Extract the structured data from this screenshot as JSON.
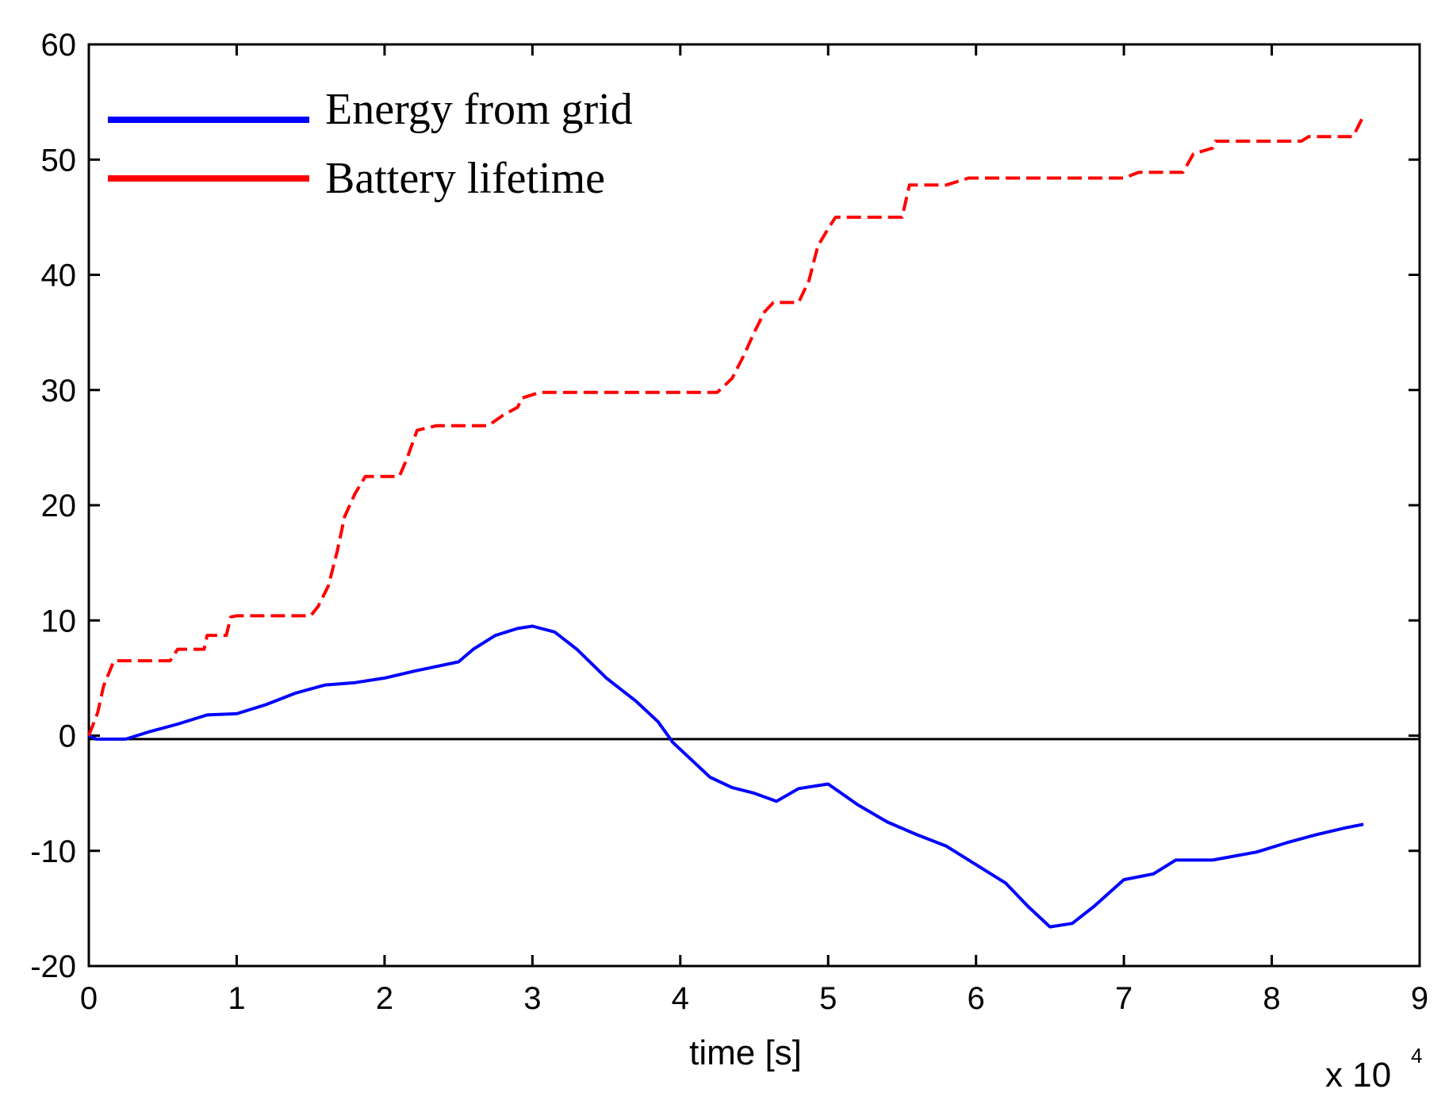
{
  "chart_data": {
    "type": "line",
    "title": "",
    "xlabel": "time [s]",
    "ylabel": "",
    "x_multiplier_label": "x 10",
    "x_multiplier_exponent": "4",
    "xlim": [
      0,
      9
    ],
    "ylim": [
      -20,
      60
    ],
    "xticks": [
      0,
      1,
      2,
      3,
      4,
      5,
      6,
      7,
      8,
      9
    ],
    "yticks": [
      -20,
      -10,
      0,
      10,
      20,
      30,
      40,
      50,
      60
    ],
    "xtick_labels": [
      "0",
      "1",
      "2",
      "3",
      "4",
      "5",
      "6",
      "7",
      "8",
      "9"
    ],
    "ytick_labels": [
      "-20",
      "-10",
      "0",
      "10",
      "20",
      "30",
      "40",
      "50",
      "60"
    ],
    "grid": false,
    "legend_position": "top-left",
    "reference_line": {
      "y": -0.3,
      "color": "#000000"
    },
    "series": [
      {
        "name": "Energy from grid",
        "color": "#0000ff",
        "style": "solid",
        "points": [
          [
            0,
            0
          ],
          [
            0.05,
            -0.3
          ],
          [
            0.25,
            -0.3
          ],
          [
            0.4,
            0.3
          ],
          [
            0.6,
            1.0
          ],
          [
            0.8,
            1.8
          ],
          [
            1.0,
            1.9
          ],
          [
            1.2,
            2.7
          ],
          [
            1.4,
            3.7
          ],
          [
            1.6,
            4.4
          ],
          [
            1.8,
            4.6
          ],
          [
            2.0,
            5.0
          ],
          [
            2.2,
            5.6
          ],
          [
            2.5,
            6.4
          ],
          [
            2.6,
            7.5
          ],
          [
            2.75,
            8.7
          ],
          [
            2.9,
            9.3
          ],
          [
            3.0,
            9.5
          ],
          [
            3.15,
            9.0
          ],
          [
            3.3,
            7.5
          ],
          [
            3.5,
            5.0
          ],
          [
            3.7,
            3.0
          ],
          [
            3.85,
            1.2
          ],
          [
            3.95,
            -0.6
          ],
          [
            4.05,
            -1.8
          ],
          [
            4.2,
            -3.6
          ],
          [
            4.35,
            -4.5
          ],
          [
            4.5,
            -5.0
          ],
          [
            4.65,
            -5.7
          ],
          [
            4.8,
            -4.6
          ],
          [
            5.0,
            -4.2
          ],
          [
            5.2,
            -6.0
          ],
          [
            5.4,
            -7.5
          ],
          [
            5.6,
            -8.6
          ],
          [
            5.8,
            -9.6
          ],
          [
            6.0,
            -11.2
          ],
          [
            6.2,
            -12.8
          ],
          [
            6.35,
            -14.8
          ],
          [
            6.5,
            -16.6
          ],
          [
            6.65,
            -16.3
          ],
          [
            6.8,
            -14.8
          ],
          [
            7.0,
            -12.5
          ],
          [
            7.2,
            -12.0
          ],
          [
            7.35,
            -10.8
          ],
          [
            7.6,
            -10.8
          ],
          [
            7.9,
            -10.1
          ],
          [
            8.1,
            -9.3
          ],
          [
            8.3,
            -8.6
          ],
          [
            8.5,
            -8.0
          ],
          [
            8.62,
            -7.7
          ]
        ]
      },
      {
        "name": "Battery lifetime",
        "color": "#ff0000",
        "style": "dashed",
        "points": [
          [
            0,
            0
          ],
          [
            0.06,
            2.0
          ],
          [
            0.1,
            4.3
          ],
          [
            0.17,
            6.5
          ],
          [
            0.25,
            6.5
          ],
          [
            0.55,
            6.5
          ],
          [
            0.6,
            7.5
          ],
          [
            0.78,
            7.5
          ],
          [
            0.8,
            8.7
          ],
          [
            0.93,
            8.7
          ],
          [
            0.96,
            10.3
          ],
          [
            1.0,
            10.4
          ],
          [
            1.5,
            10.4
          ],
          [
            1.55,
            11.2
          ],
          [
            1.62,
            13.0
          ],
          [
            1.68,
            16.0
          ],
          [
            1.73,
            19.0
          ],
          [
            1.8,
            21.0
          ],
          [
            1.87,
            22.5
          ],
          [
            2.1,
            22.5
          ],
          [
            2.15,
            24.0
          ],
          [
            2.22,
            26.5
          ],
          [
            2.35,
            26.9
          ],
          [
            2.7,
            26.9
          ],
          [
            2.8,
            27.8
          ],
          [
            2.9,
            28.5
          ],
          [
            2.93,
            29.3
          ],
          [
            3.05,
            29.8
          ],
          [
            4.25,
            29.8
          ],
          [
            4.35,
            31.0
          ],
          [
            4.43,
            33.0
          ],
          [
            4.5,
            35.0
          ],
          [
            4.57,
            36.8
          ],
          [
            4.63,
            37.6
          ],
          [
            4.8,
            37.6
          ],
          [
            4.87,
            39.5
          ],
          [
            4.93,
            42.5
          ],
          [
            5.0,
            44.0
          ],
          [
            5.05,
            45.0
          ],
          [
            5.5,
            45.0
          ],
          [
            5.55,
            47.8
          ],
          [
            5.8,
            47.8
          ],
          [
            5.95,
            48.4
          ],
          [
            6.7,
            48.4
          ],
          [
            7.0,
            48.4
          ],
          [
            7.1,
            48.9
          ],
          [
            7.4,
            48.9
          ],
          [
            7.47,
            50.5
          ],
          [
            7.6,
            51.0
          ],
          [
            7.62,
            51.6
          ],
          [
            8.2,
            51.6
          ],
          [
            8.25,
            52.0
          ],
          [
            8.55,
            52.0
          ],
          [
            8.62,
            53.8
          ]
        ]
      }
    ]
  }
}
